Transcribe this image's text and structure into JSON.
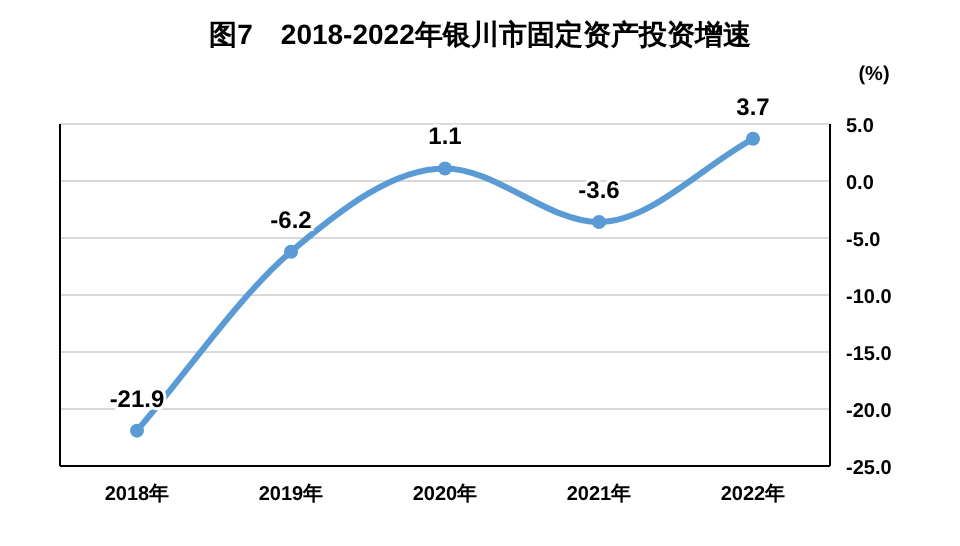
{
  "chart_data": {
    "type": "line",
    "title": "图7　2018-2022年银川市固定资产投资增速",
    "ylabel": "(%)",
    "categories": [
      "2018年",
      "2019年",
      "2020年",
      "2021年",
      "2022年"
    ],
    "series": [
      {
        "color": "#5b9bd5",
        "values": [
          -21.9,
          -6.2,
          1.1,
          -3.6,
          3.7
        ]
      }
    ],
    "ylim": [
      -25,
      5
    ],
    "yticks": [
      {
        "value": 5,
        "label": "5.0"
      },
      {
        "value": 0,
        "label": "0.0"
      },
      {
        "value": -5,
        "label": "-5.0"
      },
      {
        "value": -10,
        "label": "-10.0"
      },
      {
        "value": -15,
        "label": "-15.0"
      },
      {
        "value": -20,
        "label": "-20.0"
      },
      {
        "value": -25,
        "label": "-25.0"
      }
    ],
    "grid": "y",
    "marker": "circle",
    "line_style": "solid",
    "data_labels": true
  }
}
